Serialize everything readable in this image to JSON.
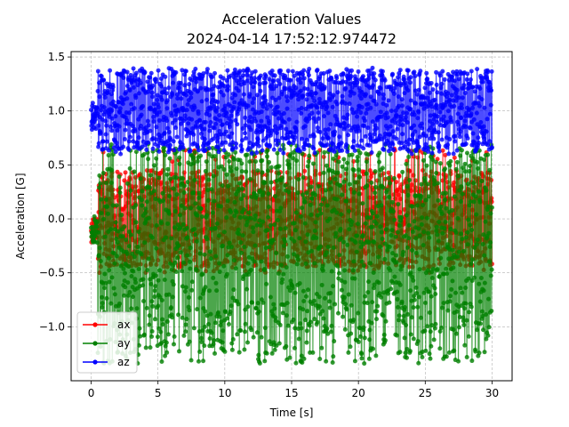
{
  "chart_data": {
    "type": "line",
    "title": "Acceleration Values",
    "subtitle": "2024-04-14 17:52:12.974472",
    "xlabel": "Time [s]",
    "ylabel": "Acceleration [G]",
    "xlim": [
      -1.5,
      31.5
    ],
    "ylim": [
      -1.5,
      1.55
    ],
    "xticks": [
      0,
      5,
      10,
      15,
      20,
      25,
      30
    ],
    "xtick_labels": [
      "0",
      "5",
      "10",
      "15",
      "20",
      "25",
      "30"
    ],
    "yticks": [
      -1.0,
      -0.5,
      0.0,
      0.5,
      1.0,
      1.5
    ],
    "ytick_labels": [
      "−1.0",
      "−0.5",
      "0.0",
      "0.5",
      "1.0",
      "1.5"
    ],
    "grid": true,
    "legend_position": "lower-left",
    "series": [
      {
        "name": "ax",
        "color": "#ff0000",
        "marker": "circle",
        "t_start": 0,
        "t_end": 30,
        "n_points": 1500,
        "level": 0.0,
        "start_level": -0.1,
        "range": [
          -0.45,
          0.45
        ],
        "peak_range": [
          -0.5,
          0.65
        ]
      },
      {
        "name": "ay",
        "color": "#008000",
        "marker": "circle",
        "t_start": 0,
        "t_end": 30,
        "n_points": 1500,
        "level": -0.2,
        "start_level": -0.1,
        "range": [
          -1.25,
          0.65
        ],
        "peak_range": [
          -1.35,
          0.7
        ]
      },
      {
        "name": "az",
        "color": "#0000ff",
        "marker": "circle",
        "t_start": 0,
        "t_end": 30,
        "n_points": 1500,
        "level": 1.0,
        "start_level": 0.95,
        "range": [
          0.62,
          1.38
        ],
        "peak_range": [
          0.6,
          1.4
        ]
      }
    ]
  }
}
